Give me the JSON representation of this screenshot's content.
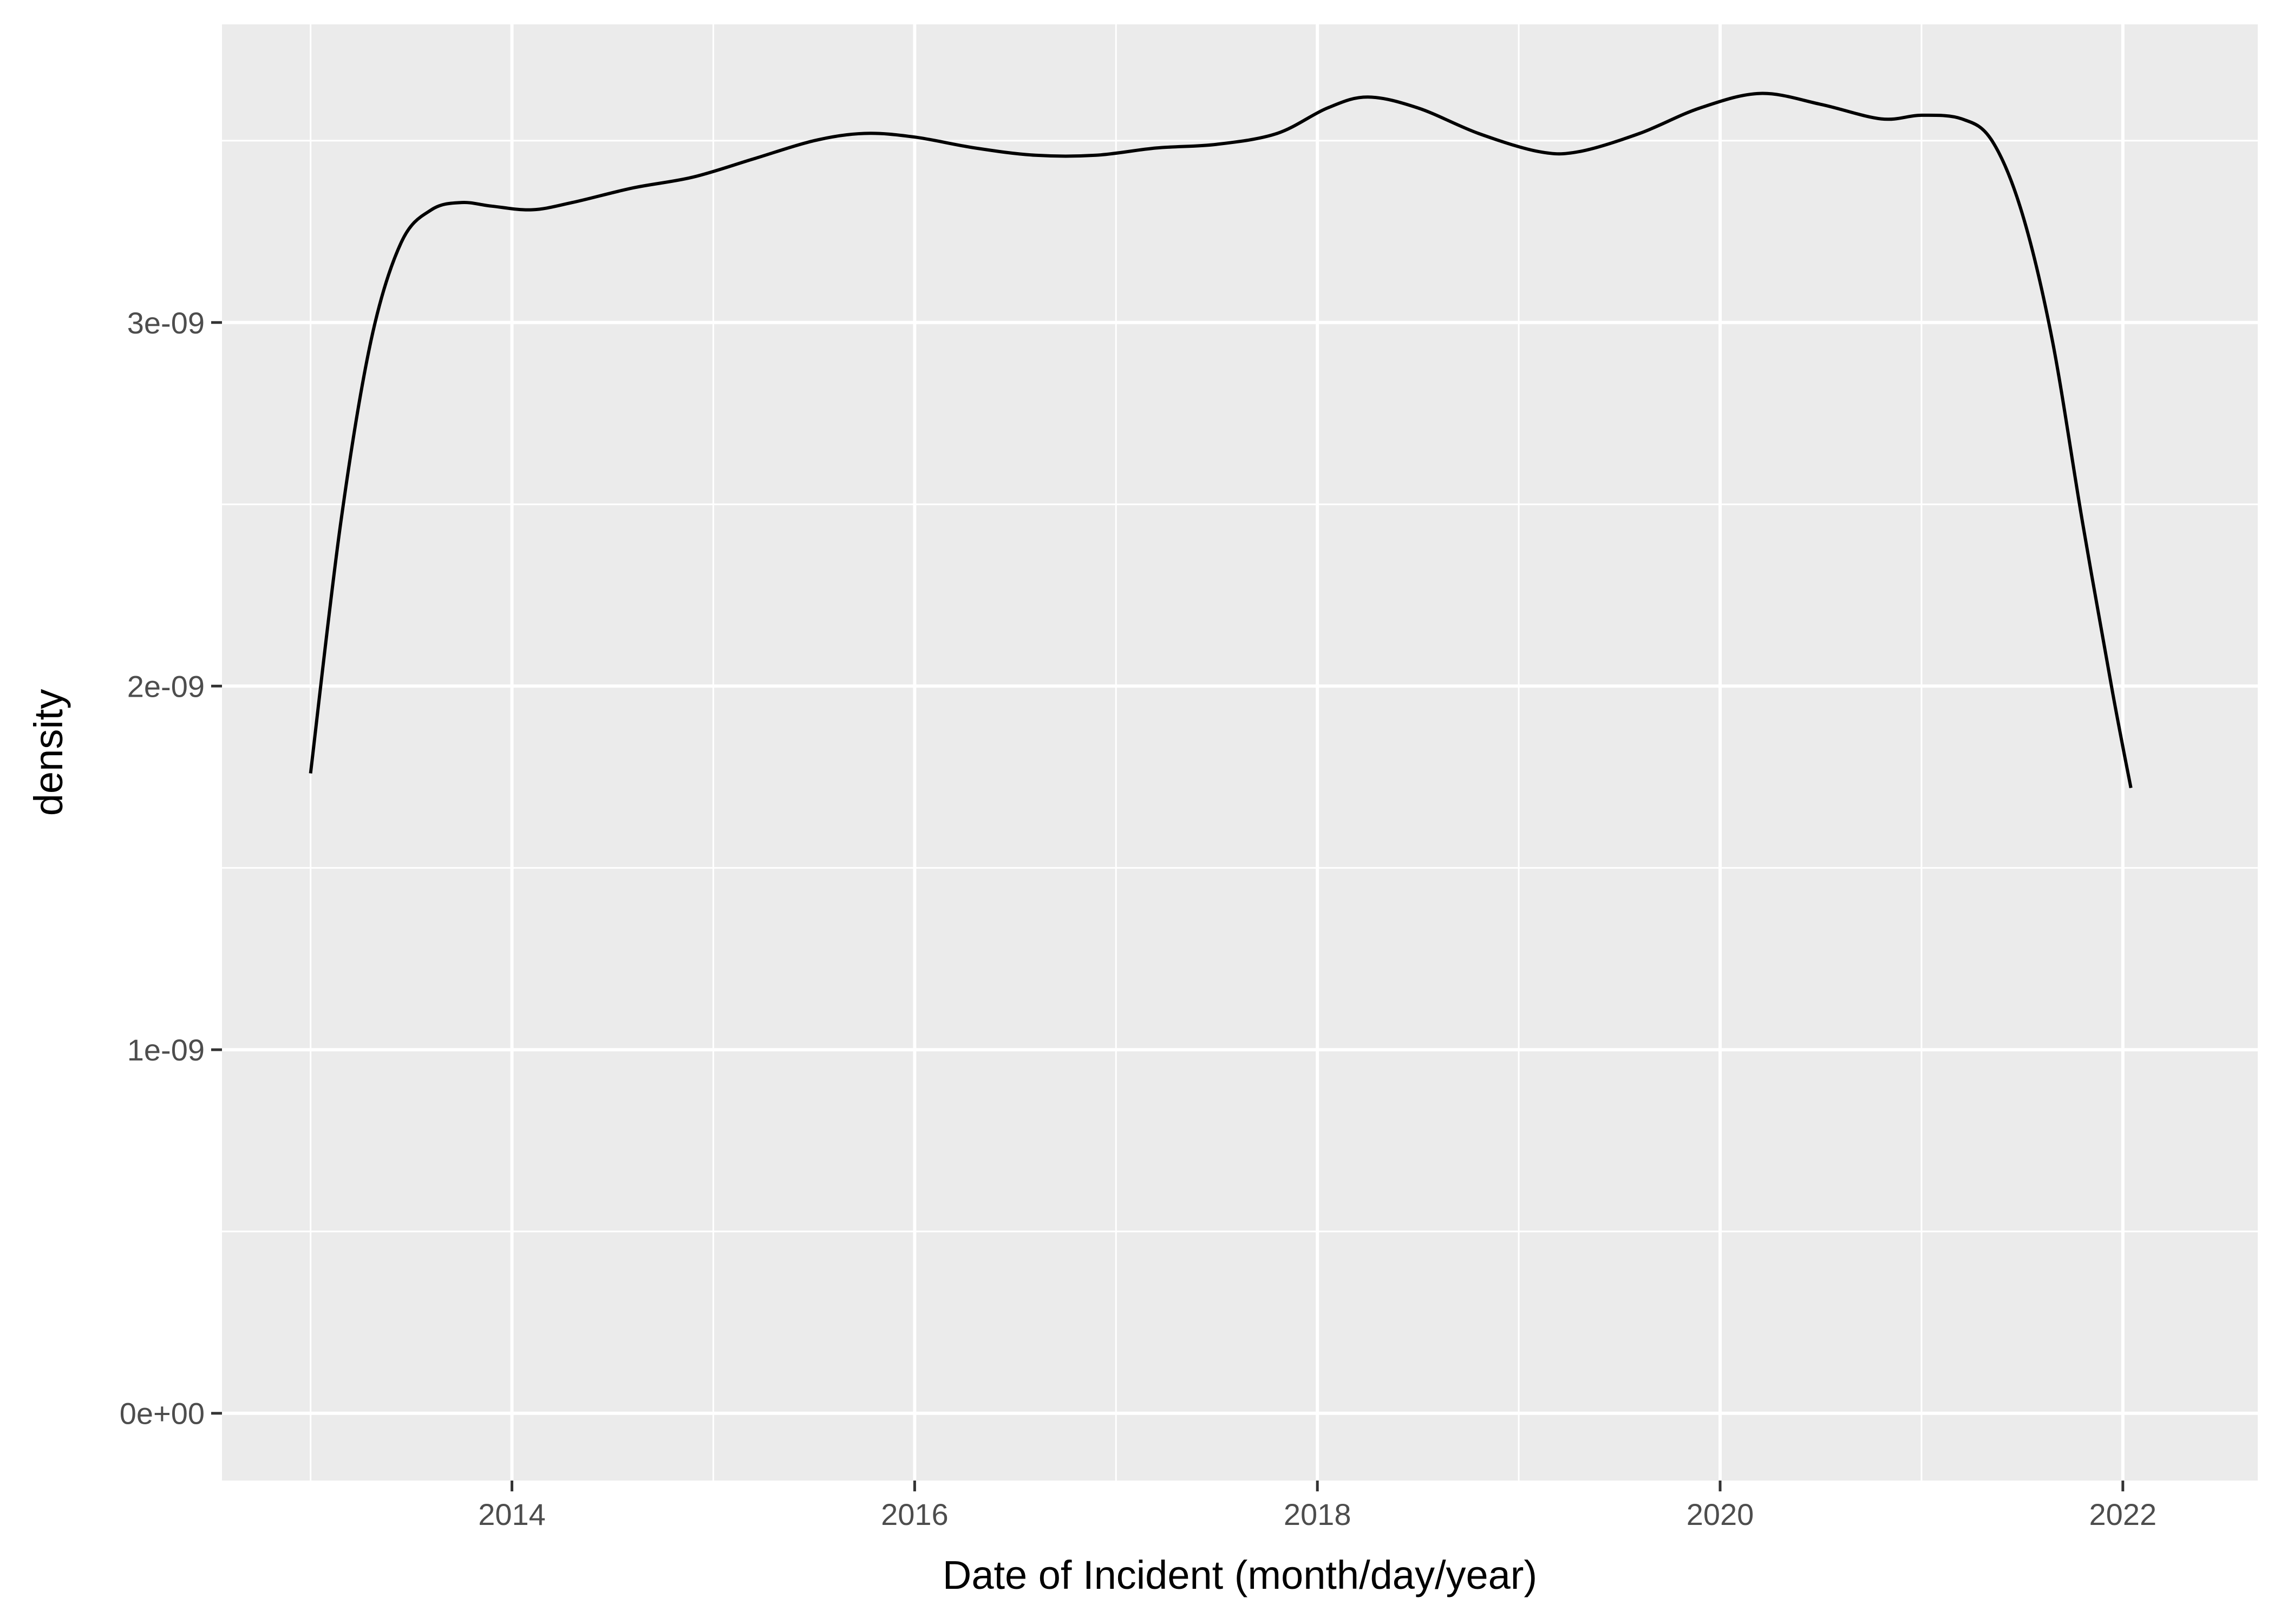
{
  "chart_data": {
    "type": "line",
    "title": "",
    "xlabel": "Date of Incident (month/day/year)",
    "ylabel": "density",
    "xlim": [
      2012.56,
      2022.67
    ],
    "ylim": [
      -1.85e-10,
      3.82e-09
    ],
    "x_ticks": [
      {
        "value": 2014,
        "label": "2014"
      },
      {
        "value": 2016,
        "label": "2016"
      },
      {
        "value": 2018,
        "label": "2018"
      },
      {
        "value": 2020,
        "label": "2020"
      },
      {
        "value": 2022,
        "label": "2022"
      }
    ],
    "y_ticks": [
      {
        "value": 0,
        "label": "0e+00"
      },
      {
        "value": 1e-09,
        "label": "1e-09"
      },
      {
        "value": 2e-09,
        "label": "2e-09"
      },
      {
        "value": 3e-09,
        "label": "3e-09"
      }
    ],
    "grid": true,
    "colors": {
      "panel_background": "#ebebeb",
      "grid_line": "#ffffff",
      "series_line": "#000000",
      "tick_mark": "#333333"
    },
    "series": [
      {
        "x": [
          2013.0,
          2013.15,
          2013.3,
          2013.45,
          2013.6,
          2013.75,
          2013.9,
          2014.1,
          2014.3,
          2014.6,
          2014.9,
          2015.2,
          2015.5,
          2015.75,
          2016.0,
          2016.3,
          2016.6,
          2016.9,
          2017.2,
          2017.5,
          2017.8,
          2018.05,
          2018.25,
          2018.5,
          2018.8,
          2019.1,
          2019.3,
          2019.6,
          2019.9,
          2020.2,
          2020.5,
          2020.8,
          2021.0,
          2021.2,
          2021.35,
          2021.5,
          2021.65,
          2021.8,
          2021.95,
          2022.04
        ],
        "y": [
          1.76e-09,
          2.45e-09,
          2.95e-09,
          3.22e-09,
          3.31e-09,
          3.33e-09,
          3.32e-09,
          3.31e-09,
          3.33e-09,
          3.37e-09,
          3.4e-09,
          3.45e-09,
          3.5e-09,
          3.52e-09,
          3.51e-09,
          3.48e-09,
          3.46e-09,
          3.46e-09,
          3.48e-09,
          3.49e-09,
          3.52e-09,
          3.59e-09,
          3.62e-09,
          3.59e-09,
          3.52e-09,
          3.47e-09,
          3.47e-09,
          3.52e-09,
          3.59e-09,
          3.63e-09,
          3.6e-09,
          3.56e-09,
          3.57e-09,
          3.56e-09,
          3.5e-09,
          3.3e-09,
          2.95e-09,
          2.45e-09,
          1.98e-09,
          1.72e-09
        ]
      }
    ]
  }
}
